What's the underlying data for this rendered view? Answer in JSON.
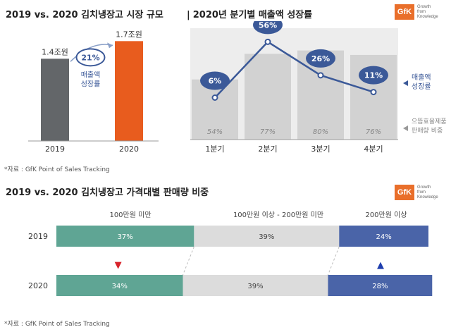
{
  "header": {
    "left_title": "2019 vs. 2020 김치냉장고 시장 규모",
    "right_title": "2020년 분기별 매출액 성장률",
    "bottom_title": "2019 vs. 2020 김치냉장고 가격대별 판매량 비중",
    "source_top": "*자료 : GfK Point of Sales Tracking",
    "source_bottom": "*자료 : GfK Point of Sales Tracking",
    "gfk_logo": "GfK",
    "gfk_tagline": [
      "Growth",
      "from",
      "Knowledge"
    ]
  },
  "colors": {
    "bar2019": "#636669",
    "bar2020": "#e85c1e",
    "accent_blue": "#3b5998",
    "teal": "#5fa594",
    "grey": "#dcdcdc",
    "navy": "#4a64a8"
  },
  "chart_data": [
    {
      "type": "bar",
      "title": "2019 vs. 2020 김치냉장고 시장 규모",
      "categories": [
        "2019",
        "2020"
      ],
      "values": [
        1.4,
        1.7
      ],
      "value_labels": [
        "1.4조원",
        "1.7조원"
      ],
      "ylim": [
        0,
        1.8
      ],
      "growth_badge": "21%",
      "growth_label": [
        "매출액",
        "성장률"
      ]
    },
    {
      "type": "line",
      "title": "2020년 분기별 매출액 성장률",
      "categories": [
        "1분기",
        "2분기",
        "3분기",
        "4분기"
      ],
      "series": [
        {
          "name": "매출액 성장률",
          "values": [
            6,
            56,
            26,
            11
          ],
          "labels": [
            "6%",
            "56%",
            "26%",
            "11%"
          ]
        },
        {
          "name": "으뜸효율제품 판매량 비중",
          "values": [
            54,
            77,
            80,
            76
          ],
          "labels": [
            "54%",
            "77%",
            "80%",
            "76%"
          ]
        }
      ],
      "legend": {
        "growth": [
          "매출액",
          "성장률"
        ],
        "share": [
          "으뜸효율제품",
          "판매량 비중"
        ]
      },
      "ylim": [
        0,
        100
      ]
    },
    {
      "type": "bar",
      "stacked": true,
      "title": "2019 vs. 2020 김치냉장고 가격대별 판매량 비중",
      "categories": [
        "2019",
        "2020"
      ],
      "segments": [
        "100만원 미만",
        "100만원 이상 - 200만원 미만",
        "200만원 이상"
      ],
      "series": [
        {
          "name": "100만원 미만",
          "values": [
            37,
            34
          ],
          "labels": [
            "37%",
            "34%"
          ]
        },
        {
          "name": "100만원 이상 - 200만원 미만",
          "values": [
            39,
            39
          ],
          "labels": [
            "39%",
            "39%"
          ]
        },
        {
          "name": "200만원 이상",
          "values": [
            24,
            28
          ],
          "labels": [
            "24%",
            "28%"
          ]
        }
      ],
      "change_markers": [
        "▼",
        "▲"
      ]
    }
  ]
}
